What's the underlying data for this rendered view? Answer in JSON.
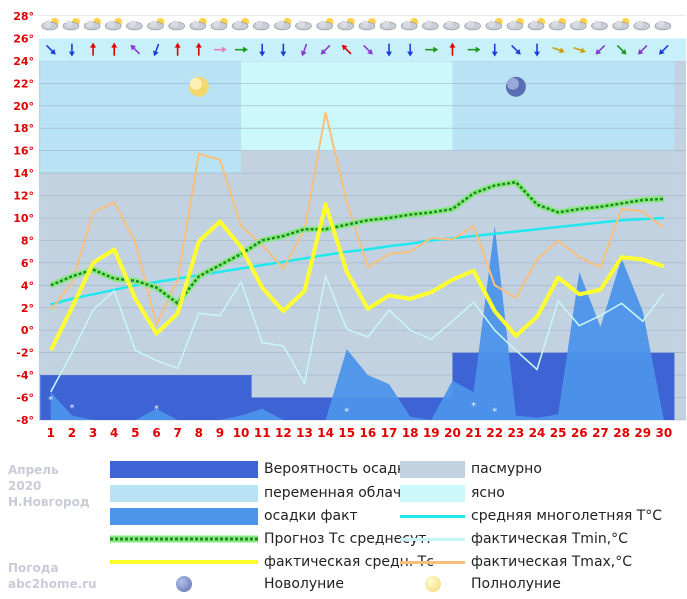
{
  "chart_data": {
    "type": "line",
    "title": "",
    "xlabel": "",
    "ylabel": "",
    "x": [
      1,
      2,
      3,
      4,
      5,
      6,
      7,
      8,
      9,
      10,
      11,
      12,
      13,
      14,
      15,
      16,
      17,
      18,
      19,
      20,
      21,
      22,
      23,
      24,
      25,
      26,
      27,
      28,
      29,
      30
    ],
    "ylim": [
      -8,
      28
    ],
    "yticks": [
      "-8°",
      "-6°",
      "-4°",
      "-2°",
      "0°",
      "2°",
      "4°",
      "6°",
      "8°",
      "10°",
      "12°",
      "14°",
      "16°",
      "18°",
      "20°",
      "22°",
      "24°",
      "26°",
      "28°"
    ],
    "xticks": [
      "1",
      "2",
      "3",
      "4",
      "5",
      "6",
      "7",
      "8",
      "9",
      "10",
      "11",
      "12",
      "13",
      "14",
      "15",
      "16",
      "17",
      "18",
      "19",
      "20",
      "21",
      "22",
      "23",
      "24",
      "25",
      "26",
      "27",
      "28",
      "29",
      "30"
    ],
    "cloud_bands": [
      {
        "from": 1,
        "to": 10.5,
        "type": "overcast",
        "upto": 14
      },
      {
        "from": 1,
        "to": 10.5,
        "type": "partly",
        "upto": 24
      },
      {
        "from": 10.5,
        "to": 20.5,
        "type": "overcast",
        "upto": 16
      },
      {
        "from": 10.5,
        "to": 20.5,
        "type": "clear",
        "upto": 24
      },
      {
        "from": 20.5,
        "to": 30.5,
        "type": "overcast",
        "upto": 16
      },
      {
        "from": 20.5,
        "to": 30.5,
        "type": "partly",
        "upto": 24
      }
    ],
    "precip_probability_bands": [
      {
        "from": 1,
        "to": 10.5,
        "level": -4
      },
      {
        "from": 10.5,
        "to": 20.5,
        "level": -6
      },
      {
        "from": 20.5,
        "to": 30.5,
        "level": -2
      }
    ],
    "precip_fact": [
      -5.5,
      -7.6,
      -8,
      -8,
      -8,
      -7,
      -8,
      -8,
      -8,
      -7.6,
      -7,
      -8,
      -8,
      -8,
      -1.7,
      -4,
      -4.8,
      -7.7,
      -8,
      -4.5,
      -5.5,
      9.3,
      -7.6,
      -7.8,
      -7.5,
      5.2,
      0.3,
      6.4,
      1.7,
      -8
    ],
    "forecast_mean": [
      4.0,
      4.8,
      5.4,
      4.6,
      4.4,
      3.8,
      2.4,
      4.8,
      5.8,
      6.8,
      8.0,
      8.4,
      9.0,
      9.0,
      9.4,
      9.8,
      10.0,
      10.3,
      10.5,
      10.8,
      12.2,
      12.9,
      13.2,
      11.2,
      10.5,
      10.8,
      11.0,
      11.3,
      11.6,
      11.7
    ],
    "climate_mean": [
      2.3,
      2.8,
      3.2,
      3.6,
      4.0,
      4.3,
      4.6,
      4.9,
      5.2,
      5.5,
      5.8,
      6.1,
      6.4,
      6.7,
      7.0,
      7.2,
      7.5,
      7.7,
      8.0,
      8.2,
      8.4,
      8.6,
      8.8,
      9.0,
      9.2,
      9.4,
      9.6,
      9.8,
      9.9,
      10.0
    ],
    "fact_mean": [
      -1.8,
      2.0,
      6.0,
      7.2,
      2.8,
      -0.3,
      1.5,
      7.9,
      9.7,
      7.4,
      3.8,
      1.7,
      3.5,
      11.2,
      5.2,
      1.9,
      3.1,
      2.8,
      3.4,
      4.5,
      5.3,
      1.7,
      -0.5,
      1.2,
      4.7,
      3.2,
      3.6,
      6.5,
      6.3,
      5.7
    ],
    "fact_min": [
      -5.5,
      -2.0,
      1.8,
      3.5,
      -1.8,
      -2.7,
      -3.4,
      1.5,
      1.3,
      4.3,
      -1.1,
      -1.4,
      -4.7,
      4.8,
      0.1,
      -0.6,
      1.8,
      0.0,
      -0.8,
      0.8,
      2.5,
      0.0,
      -1.8,
      -3.5,
      2.6,
      0.4,
      1.3,
      2.4,
      0.8,
      3.3
    ],
    "fact_max": [
      1.8,
      4.2,
      10.5,
      11.4,
      7.8,
      0.5,
      4.5,
      15.7,
      15.2,
      9.3,
      7.6,
      5.5,
      9.0,
      19.4,
      11.4,
      5.6,
      6.8,
      7.0,
      8.2,
      8.1,
      9.3,
      4.0,
      2.9,
      6.3,
      8.0,
      6.5,
      5.6,
      10.8,
      10.6,
      9.1
    ],
    "new_moon_day": 23,
    "full_moon_day": 8,
    "weather_icons": [
      "cloud-sun",
      "cloud-sun",
      "cloud-sun",
      "cloud-sun",
      "cloud",
      "cloud-sun",
      "cloud",
      "cloud-sun",
      "cloud-sun",
      "cloud-sun",
      "cloud",
      "cloud-sun",
      "cloud",
      "cloud-sun",
      "cloud-sun",
      "cloud-sun",
      "cloud",
      "cloud-sun",
      "cloud",
      "cloud",
      "cloud",
      "cloud-sun",
      "cloud-sun",
      "cloud-sun",
      "cloud-sun",
      "cloud-sun",
      "cloud",
      "cloud-sun",
      "cloud",
      "cloud"
    ],
    "wind_arrows": [
      {
        "angle": 135,
        "color": "#1a3fd6"
      },
      {
        "angle": 180,
        "color": "#1a3fd6"
      },
      {
        "angle": 0,
        "color": "#e00000"
      },
      {
        "angle": 0,
        "color": "#e00000"
      },
      {
        "angle": 315,
        "color": "#8a3ad0"
      },
      {
        "angle": 200,
        "color": "#1a3fd6"
      },
      {
        "angle": 0,
        "color": "#e00000"
      },
      {
        "angle": 0,
        "color": "#e00000"
      },
      {
        "angle": 90,
        "color": "#e080c0"
      },
      {
        "angle": 90,
        "color": "#1a9a1a"
      },
      {
        "angle": 180,
        "color": "#1a3fd6"
      },
      {
        "angle": 180,
        "color": "#1a3fd6"
      },
      {
        "angle": 200,
        "color": "#8a3ad0"
      },
      {
        "angle": 225,
        "color": "#8a3ad0"
      },
      {
        "angle": 315,
        "color": "#e00000"
      },
      {
        "angle": 135,
        "color": "#8a3ad0"
      },
      {
        "angle": 180,
        "color": "#1a3fd6"
      },
      {
        "angle": 180,
        "color": "#1a3fd6"
      },
      {
        "angle": 90,
        "color": "#1a9a1a"
      },
      {
        "angle": 0,
        "color": "#e00000"
      },
      {
        "angle": 90,
        "color": "#1a9a1a"
      },
      {
        "angle": 180,
        "color": "#1a3fd6"
      },
      {
        "angle": 135,
        "color": "#1a3fd6"
      },
      {
        "angle": 180,
        "color": "#1a3fd6"
      },
      {
        "angle": 110,
        "color": "#c8a000"
      },
      {
        "angle": 110,
        "color": "#c8a000"
      },
      {
        "angle": 225,
        "color": "#8a3ad0"
      },
      {
        "angle": 135,
        "color": "#1a9a1a"
      },
      {
        "angle": 225,
        "color": "#8a3ad0"
      },
      {
        "angle": 225,
        "color": "#1a3fd6"
      }
    ],
    "colors": {
      "precip_prob": "#3e63d4",
      "precip_fact": "#4c93ea",
      "partly": "#b9e3f5",
      "overcast": "#c2d2e0",
      "clear": "#ccf8fc",
      "climate_mean": "#20e8ee",
      "fact_min": "#c8f4f8",
      "fact_max": "#f8c07c",
      "fact_mean": "#ffff30",
      "forecast_dash": "#1d8a1d",
      "forecast_fill": "#8ae882"
    },
    "legend": {
      "precip_prob": "Вероятность осадков",
      "overcast": "пасмурно",
      "partly": "переменная облачность",
      "clear": "ясно",
      "precip_fact": "осадки факт",
      "climate_mean": "средняя многолетняя T°C",
      "forecast_mean": "Прогноз Тс среднесут.",
      "fact_min": "фактическая Tmin,°C",
      "fact_mean": "фактическая средн. Тс",
      "fact_max": "фактическая Tmax,°C",
      "new_moon": "Новолуние",
      "full_moon": "Полнолуние"
    }
  },
  "sidebar": {
    "month": "Апрель",
    "year": "2020",
    "city": "Н.Новгород",
    "brand_line1": "Погода",
    "brand_line2": "abc2home.ru"
  }
}
